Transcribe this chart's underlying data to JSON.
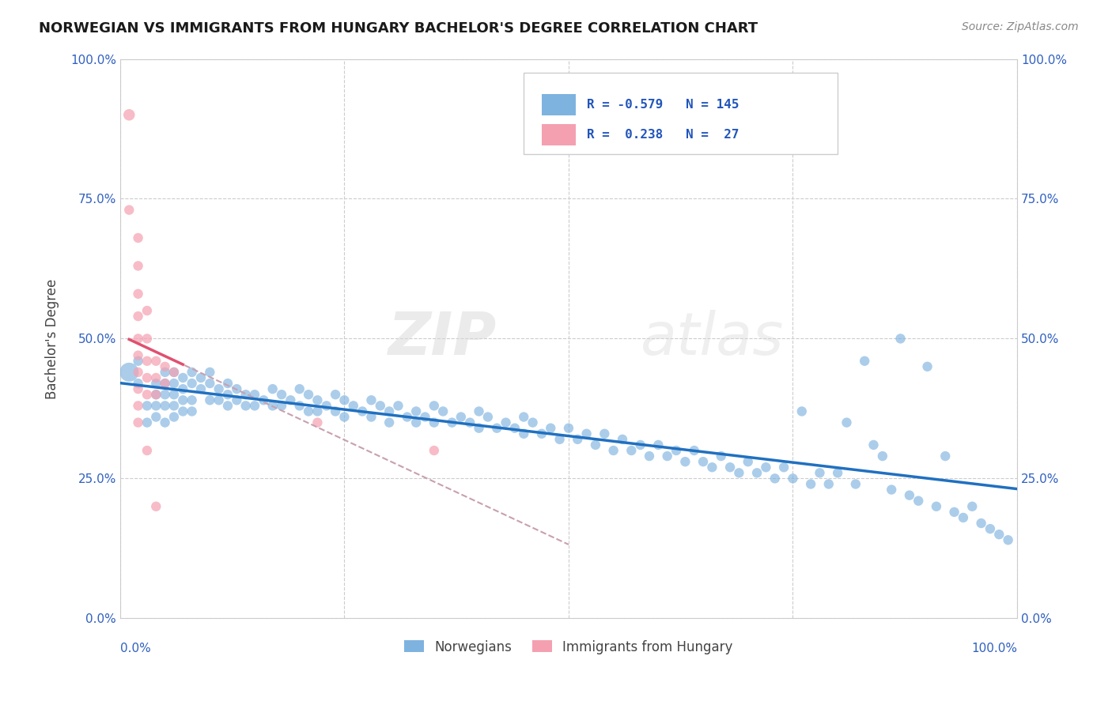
{
  "title": "NORWEGIAN VS IMMIGRANTS FROM HUNGARY BACHELOR'S DEGREE CORRELATION CHART",
  "source": "Source: ZipAtlas.com",
  "ylabel": "Bachelor's Degree",
  "yticks": [
    "0.0%",
    "25.0%",
    "50.0%",
    "75.0%",
    "100.0%"
  ],
  "ytick_vals": [
    0.0,
    0.25,
    0.5,
    0.75,
    1.0
  ],
  "xlim": [
    0.0,
    1.0
  ],
  "ylim": [
    0.0,
    1.0
  ],
  "legend_labels": [
    "Norwegians",
    "Immigrants from Hungary"
  ],
  "blue_color": "#7eb3e0",
  "pink_color": "#f4a0b0",
  "regression_blue_color": "#2070c0",
  "regression_pink_color": "#e05070",
  "regression_pink_dashed_color": "#c8a0b0",
  "watermark_zip": "ZIP",
  "watermark_atlas": "atlas",
  "blue_scatter": [
    [
      0.02,
      0.42
    ],
    [
      0.03,
      0.38
    ],
    [
      0.03,
      0.35
    ],
    [
      0.04,
      0.42
    ],
    [
      0.04,
      0.4
    ],
    [
      0.04,
      0.38
    ],
    [
      0.04,
      0.36
    ],
    [
      0.05,
      0.44
    ],
    [
      0.05,
      0.42
    ],
    [
      0.05,
      0.4
    ],
    [
      0.05,
      0.38
    ],
    [
      0.05,
      0.35
    ],
    [
      0.06,
      0.44
    ],
    [
      0.06,
      0.42
    ],
    [
      0.06,
      0.4
    ],
    [
      0.06,
      0.38
    ],
    [
      0.06,
      0.36
    ],
    [
      0.07,
      0.43
    ],
    [
      0.07,
      0.41
    ],
    [
      0.07,
      0.39
    ],
    [
      0.07,
      0.37
    ],
    [
      0.08,
      0.44
    ],
    [
      0.08,
      0.42
    ],
    [
      0.08,
      0.39
    ],
    [
      0.08,
      0.37
    ],
    [
      0.09,
      0.43
    ],
    [
      0.09,
      0.41
    ],
    [
      0.1,
      0.44
    ],
    [
      0.1,
      0.42
    ],
    [
      0.1,
      0.39
    ],
    [
      0.11,
      0.41
    ],
    [
      0.11,
      0.39
    ],
    [
      0.12,
      0.42
    ],
    [
      0.12,
      0.4
    ],
    [
      0.12,
      0.38
    ],
    [
      0.13,
      0.41
    ],
    [
      0.13,
      0.39
    ],
    [
      0.14,
      0.4
    ],
    [
      0.14,
      0.38
    ],
    [
      0.15,
      0.4
    ],
    [
      0.15,
      0.38
    ],
    [
      0.16,
      0.39
    ],
    [
      0.17,
      0.41
    ],
    [
      0.17,
      0.38
    ],
    [
      0.18,
      0.4
    ],
    [
      0.18,
      0.38
    ],
    [
      0.19,
      0.39
    ],
    [
      0.2,
      0.41
    ],
    [
      0.2,
      0.38
    ],
    [
      0.21,
      0.4
    ],
    [
      0.21,
      0.37
    ],
    [
      0.22,
      0.39
    ],
    [
      0.22,
      0.37
    ],
    [
      0.23,
      0.38
    ],
    [
      0.24,
      0.4
    ],
    [
      0.24,
      0.37
    ],
    [
      0.25,
      0.39
    ],
    [
      0.25,
      0.36
    ],
    [
      0.26,
      0.38
    ],
    [
      0.27,
      0.37
    ],
    [
      0.28,
      0.39
    ],
    [
      0.28,
      0.36
    ],
    [
      0.29,
      0.38
    ],
    [
      0.3,
      0.37
    ],
    [
      0.3,
      0.35
    ],
    [
      0.31,
      0.38
    ],
    [
      0.32,
      0.36
    ],
    [
      0.33,
      0.37
    ],
    [
      0.33,
      0.35
    ],
    [
      0.34,
      0.36
    ],
    [
      0.35,
      0.38
    ],
    [
      0.35,
      0.35
    ],
    [
      0.36,
      0.37
    ],
    [
      0.37,
      0.35
    ],
    [
      0.38,
      0.36
    ],
    [
      0.39,
      0.35
    ],
    [
      0.4,
      0.37
    ],
    [
      0.4,
      0.34
    ],
    [
      0.41,
      0.36
    ],
    [
      0.42,
      0.34
    ],
    [
      0.43,
      0.35
    ],
    [
      0.44,
      0.34
    ],
    [
      0.45,
      0.36
    ],
    [
      0.45,
      0.33
    ],
    [
      0.46,
      0.35
    ],
    [
      0.47,
      0.33
    ],
    [
      0.48,
      0.34
    ],
    [
      0.49,
      0.32
    ],
    [
      0.5,
      0.34
    ],
    [
      0.51,
      0.32
    ],
    [
      0.52,
      0.33
    ],
    [
      0.53,
      0.31
    ],
    [
      0.54,
      0.33
    ],
    [
      0.55,
      0.3
    ],
    [
      0.56,
      0.32
    ],
    [
      0.57,
      0.3
    ],
    [
      0.58,
      0.31
    ],
    [
      0.59,
      0.29
    ],
    [
      0.6,
      0.31
    ],
    [
      0.61,
      0.29
    ],
    [
      0.62,
      0.3
    ],
    [
      0.63,
      0.28
    ],
    [
      0.64,
      0.3
    ],
    [
      0.65,
      0.28
    ],
    [
      0.66,
      0.27
    ],
    [
      0.67,
      0.29
    ],
    [
      0.68,
      0.27
    ],
    [
      0.69,
      0.26
    ],
    [
      0.7,
      0.28
    ],
    [
      0.71,
      0.26
    ],
    [
      0.72,
      0.27
    ],
    [
      0.73,
      0.25
    ],
    [
      0.74,
      0.27
    ],
    [
      0.75,
      0.25
    ],
    [
      0.76,
      0.37
    ],
    [
      0.77,
      0.24
    ],
    [
      0.78,
      0.26
    ],
    [
      0.79,
      0.24
    ],
    [
      0.8,
      0.26
    ],
    [
      0.81,
      0.35
    ],
    [
      0.82,
      0.24
    ],
    [
      0.83,
      0.46
    ],
    [
      0.84,
      0.31
    ],
    [
      0.85,
      0.29
    ],
    [
      0.86,
      0.23
    ],
    [
      0.87,
      0.5
    ],
    [
      0.88,
      0.22
    ],
    [
      0.89,
      0.21
    ],
    [
      0.9,
      0.45
    ],
    [
      0.91,
      0.2
    ],
    [
      0.92,
      0.29
    ],
    [
      0.93,
      0.19
    ],
    [
      0.01,
      0.44
    ],
    [
      0.02,
      0.46
    ],
    [
      0.94,
      0.18
    ],
    [
      0.95,
      0.2
    ],
    [
      0.96,
      0.17
    ],
    [
      0.97,
      0.16
    ],
    [
      0.98,
      0.15
    ],
    [
      0.99,
      0.14
    ]
  ],
  "pink_scatter": [
    [
      0.01,
      0.9
    ],
    [
      0.01,
      0.73
    ],
    [
      0.02,
      0.68
    ],
    [
      0.02,
      0.63
    ],
    [
      0.02,
      0.58
    ],
    [
      0.02,
      0.54
    ],
    [
      0.02,
      0.5
    ],
    [
      0.02,
      0.47
    ],
    [
      0.02,
      0.44
    ],
    [
      0.02,
      0.41
    ],
    [
      0.02,
      0.38
    ],
    [
      0.02,
      0.35
    ],
    [
      0.03,
      0.55
    ],
    [
      0.03,
      0.5
    ],
    [
      0.03,
      0.46
    ],
    [
      0.03,
      0.43
    ],
    [
      0.03,
      0.4
    ],
    [
      0.03,
      0.3
    ],
    [
      0.04,
      0.46
    ],
    [
      0.04,
      0.43
    ],
    [
      0.04,
      0.4
    ],
    [
      0.04,
      0.2
    ],
    [
      0.05,
      0.45
    ],
    [
      0.05,
      0.42
    ],
    [
      0.06,
      0.44
    ],
    [
      0.22,
      0.35
    ],
    [
      0.35,
      0.3
    ]
  ]
}
